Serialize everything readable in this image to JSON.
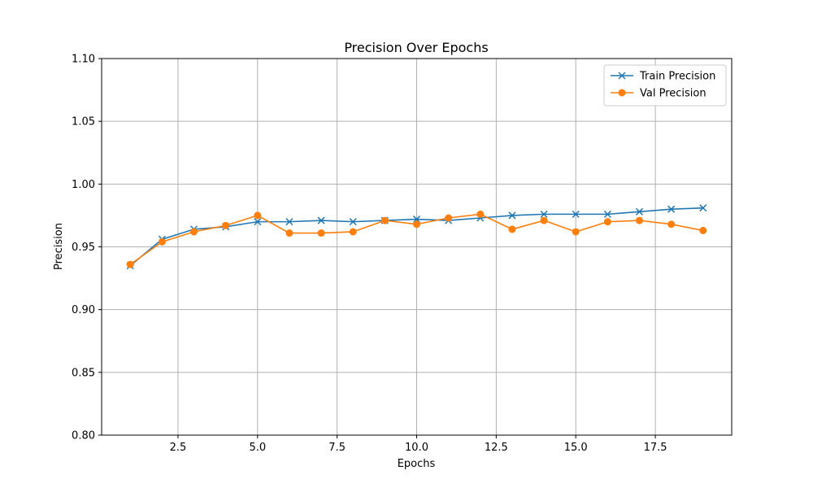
{
  "chart_data": {
    "type": "line",
    "title": "Precision Over Epochs",
    "xlabel": "Epochs",
    "ylabel": "Precision",
    "xlim": [
      0.1,
      19.9
    ],
    "ylim": [
      0.8,
      1.1
    ],
    "xticks": [
      2.5,
      5.0,
      7.5,
      10.0,
      12.5,
      15.0,
      17.5
    ],
    "xtick_labels": [
      "2.5",
      "5.0",
      "7.5",
      "10.0",
      "12.5",
      "15.0",
      "17.5"
    ],
    "yticks": [
      0.8,
      0.85,
      0.9,
      0.95,
      1.0,
      1.05,
      1.1
    ],
    "ytick_labels": [
      "0.80",
      "0.85",
      "0.90",
      "0.95",
      "1.00",
      "1.05",
      "1.10"
    ],
    "grid": true,
    "legend_position": "top-right",
    "x": [
      1,
      2,
      3,
      4,
      5,
      6,
      7,
      8,
      9,
      10,
      11,
      12,
      13,
      14,
      15,
      16,
      17,
      18,
      19
    ],
    "series": [
      {
        "name": "Train Precision",
        "color": "#1f77b4",
        "marker": "x",
        "values": [
          0.935,
          0.956,
          0.964,
          0.966,
          0.97,
          0.97,
          0.971,
          0.97,
          0.971,
          0.972,
          0.971,
          0.973,
          0.975,
          0.976,
          0.976,
          0.976,
          0.978,
          0.98,
          0.981
        ]
      },
      {
        "name": "Val Precision",
        "color": "#ff7f0e",
        "marker": "circle",
        "values": [
          0.936,
          0.954,
          0.962,
          0.967,
          0.975,
          0.961,
          0.961,
          0.962,
          0.971,
          0.968,
          0.973,
          0.976,
          0.964,
          0.971,
          0.962,
          0.97,
          0.971,
          0.968,
          0.963
        ]
      }
    ]
  }
}
